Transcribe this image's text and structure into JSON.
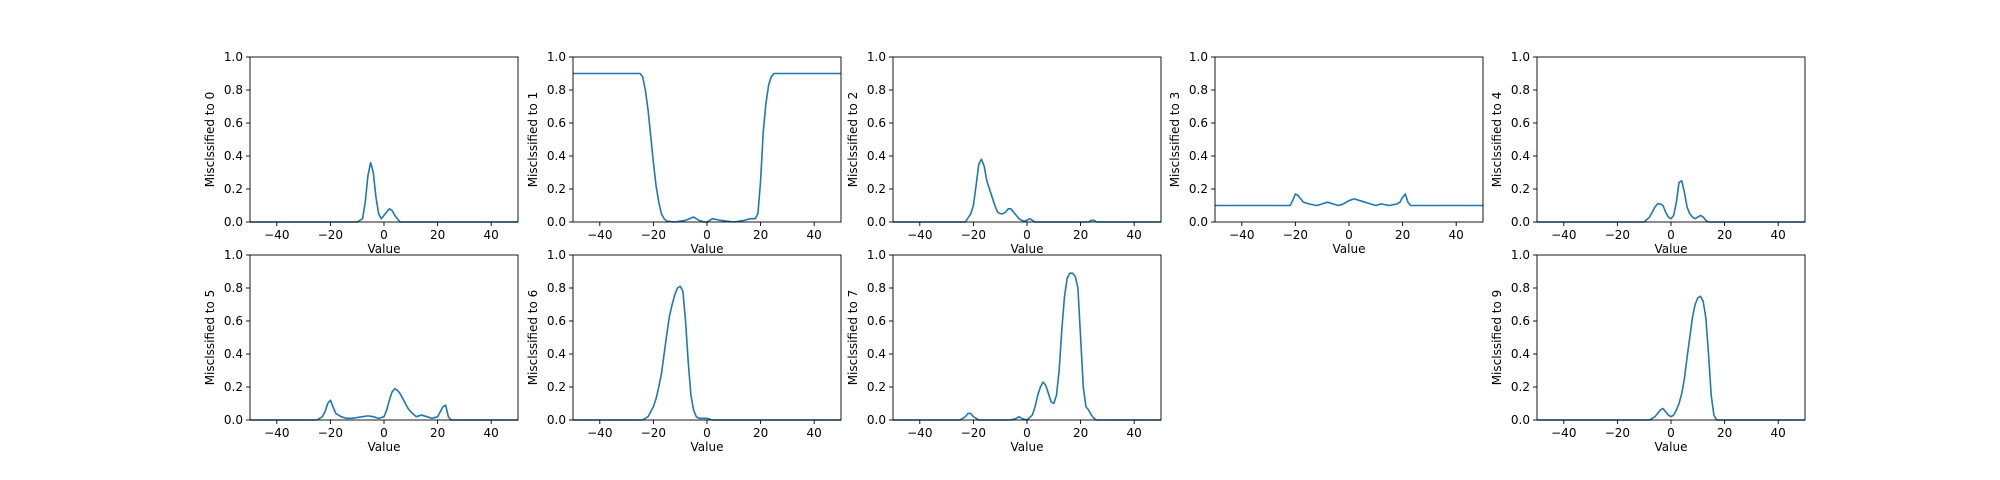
{
  "figure": {
    "background": "#ffffff",
    "line_color": "#1f77b4"
  },
  "chart_data": [
    {
      "type": "line",
      "xlabel": "Value",
      "ylabel": "Misclssified to 0",
      "xlim": [
        -50,
        50
      ],
      "ylim": [
        0,
        1
      ],
      "xticks": [
        -40,
        -20,
        0,
        20,
        40
      ],
      "yticks": [
        0.0,
        0.2,
        0.4,
        0.6,
        0.8,
        1.0
      ],
      "x": [
        -50,
        -40,
        -20,
        -10,
        -8,
        -7,
        -6,
        -5,
        -4,
        -3,
        -2,
        -1,
        0,
        1,
        2,
        3,
        4,
        5,
        6,
        7,
        8,
        10,
        20,
        40,
        50
      ],
      "y": [
        0,
        0,
        0,
        0,
        0.02,
        0.12,
        0.28,
        0.36,
        0.3,
        0.15,
        0.05,
        0.02,
        0.04,
        0.06,
        0.08,
        0.07,
        0.04,
        0.02,
        0,
        0,
        0,
        0,
        0,
        0,
        0
      ]
    },
    {
      "type": "line",
      "xlabel": "Value",
      "ylabel": "Misclssified to 1",
      "xlim": [
        -50,
        50
      ],
      "ylim": [
        0,
        1
      ],
      "xticks": [
        -40,
        -20,
        0,
        20,
        40
      ],
      "yticks": [
        0.0,
        0.2,
        0.4,
        0.6,
        0.8,
        1.0
      ],
      "x": [
        -50,
        -30,
        -25,
        -24,
        -23,
        -22,
        -21,
        -20,
        -19,
        -18,
        -17,
        -16,
        -15,
        -12,
        -8,
        -5,
        -3,
        -1,
        0,
        2,
        5,
        10,
        14,
        16,
        18,
        19,
        20,
        21,
        22,
        23,
        24,
        25,
        26,
        30,
        50
      ],
      "y": [
        0.9,
        0.9,
        0.9,
        0.88,
        0.8,
        0.68,
        0.52,
        0.36,
        0.22,
        0.12,
        0.05,
        0.02,
        0.005,
        0,
        0.01,
        0.03,
        0.01,
        0,
        0,
        0.02,
        0.01,
        0,
        0.01,
        0.02,
        0.02,
        0.05,
        0.25,
        0.55,
        0.72,
        0.83,
        0.88,
        0.9,
        0.9,
        0.9,
        0.9
      ]
    },
    {
      "type": "line",
      "xlabel": "Value",
      "ylabel": "Misclssified to 2",
      "xlim": [
        -50,
        50
      ],
      "ylim": [
        0,
        1
      ],
      "xticks": [
        -40,
        -20,
        0,
        20,
        40
      ],
      "yticks": [
        0.0,
        0.2,
        0.4,
        0.6,
        0.8,
        1.0
      ],
      "x": [
        -50,
        -30,
        -23,
        -21,
        -20,
        -19,
        -18,
        -17,
        -16,
        -15,
        -14,
        -13,
        -12,
        -11,
        -10,
        -9,
        -8,
        -7,
        -6,
        -5,
        -4,
        -3,
        -2,
        -1,
        0,
        1,
        2,
        3,
        5,
        20,
        23,
        24,
        25,
        26,
        30,
        50
      ],
      "y": [
        0,
        0,
        0,
        0.05,
        0.1,
        0.22,
        0.35,
        0.38,
        0.34,
        0.25,
        0.2,
        0.15,
        0.1,
        0.06,
        0.05,
        0.05,
        0.06,
        0.08,
        0.08,
        0.06,
        0.04,
        0.02,
        0.01,
        0.005,
        0.01,
        0.02,
        0.01,
        0,
        0,
        0,
        0,
        0.01,
        0.01,
        0,
        0,
        0
      ]
    },
    {
      "type": "line",
      "xlabel": "Value",
      "ylabel": "Misclssified to 3",
      "xlim": [
        -50,
        50
      ],
      "ylim": [
        0,
        1
      ],
      "xticks": [
        -40,
        -20,
        0,
        20,
        40
      ],
      "yticks": [
        0.0,
        0.2,
        0.4,
        0.6,
        0.8,
        1.0
      ],
      "x": [
        -50,
        -25,
        -22,
        -21,
        -20,
        -19,
        -18,
        -17,
        -15,
        -12,
        -10,
        -8,
        -6,
        -4,
        -2,
        0,
        2,
        4,
        6,
        8,
        10,
        12,
        15,
        18,
        19,
        20,
        21,
        22,
        23,
        25,
        50
      ],
      "y": [
        0.1,
        0.1,
        0.1,
        0.13,
        0.17,
        0.16,
        0.14,
        0.12,
        0.11,
        0.1,
        0.11,
        0.12,
        0.11,
        0.1,
        0.11,
        0.13,
        0.14,
        0.13,
        0.12,
        0.11,
        0.1,
        0.11,
        0.1,
        0.11,
        0.12,
        0.15,
        0.17,
        0.12,
        0.1,
        0.1,
        0.1
      ]
    },
    {
      "type": "line",
      "xlabel": "Value",
      "ylabel": "Misclssified to 4",
      "xlim": [
        -50,
        50
      ],
      "ylim": [
        0,
        1
      ],
      "xticks": [
        -40,
        -20,
        0,
        20,
        40
      ],
      "yticks": [
        0.0,
        0.2,
        0.4,
        0.6,
        0.8,
        1.0
      ],
      "x": [
        -50,
        -20,
        -10,
        -8,
        -7,
        -6,
        -5,
        -4,
        -3,
        -2,
        -1,
        0,
        1,
        2,
        3,
        4,
        5,
        6,
        7,
        8,
        9,
        10,
        11,
        12,
        13,
        14,
        16,
        20,
        50
      ],
      "y": [
        0,
        0,
        0,
        0.03,
        0.06,
        0.09,
        0.11,
        0.11,
        0.1,
        0.06,
        0.03,
        0.02,
        0.04,
        0.12,
        0.24,
        0.25,
        0.18,
        0.09,
        0.05,
        0.03,
        0.02,
        0.03,
        0.04,
        0.03,
        0.01,
        0,
        0,
        0,
        0
      ]
    },
    {
      "type": "line",
      "xlabel": "Value",
      "ylabel": "Misclssified to 5",
      "xlim": [
        -50,
        50
      ],
      "ylim": [
        0,
        1
      ],
      "xticks": [
        -40,
        -20,
        0,
        20,
        40
      ],
      "yticks": [
        0.0,
        0.2,
        0.4,
        0.6,
        0.8,
        1.0
      ],
      "x": [
        -50,
        -25,
        -23,
        -22,
        -21,
        -20,
        -19,
        -18,
        -16,
        -14,
        -12,
        -10,
        -8,
        -6,
        -4,
        -2,
        0,
        1,
        2,
        3,
        4,
        5,
        6,
        7,
        8,
        9,
        10,
        12,
        14,
        16,
        18,
        20,
        21,
        22,
        23,
        24,
        25,
        50
      ],
      "y": [
        0,
        0,
        0.02,
        0.05,
        0.1,
        0.12,
        0.08,
        0.04,
        0.02,
        0.01,
        0.01,
        0.015,
        0.02,
        0.025,
        0.02,
        0.01,
        0.02,
        0.06,
        0.12,
        0.17,
        0.19,
        0.18,
        0.16,
        0.13,
        0.1,
        0.07,
        0.05,
        0.02,
        0.03,
        0.02,
        0.01,
        0.02,
        0.05,
        0.08,
        0.09,
        0.02,
        0,
        0
      ]
    },
    {
      "type": "line",
      "xlabel": "Value",
      "ylabel": "Misclssified to 6",
      "xlim": [
        -50,
        50
      ],
      "ylim": [
        0,
        1
      ],
      "xticks": [
        -40,
        -20,
        0,
        20,
        40
      ],
      "yticks": [
        0.0,
        0.2,
        0.4,
        0.6,
        0.8,
        1.0
      ],
      "x": [
        -50,
        -30,
        -24,
        -22,
        -20,
        -19,
        -18,
        -17,
        -16,
        -15,
        -14,
        -13,
        -12,
        -11,
        -10,
        -9,
        -8,
        -7,
        -6,
        -5,
        -4,
        -3,
        -2,
        0,
        2,
        5,
        50
      ],
      "y": [
        0,
        0,
        0,
        0.02,
        0.08,
        0.13,
        0.2,
        0.28,
        0.4,
        0.52,
        0.63,
        0.7,
        0.76,
        0.8,
        0.81,
        0.78,
        0.6,
        0.35,
        0.15,
        0.06,
        0.02,
        0.01,
        0.01,
        0.01,
        0,
        0,
        0
      ]
    },
    {
      "type": "line",
      "xlabel": "Value",
      "ylabel": "Misclssified to 7",
      "xlim": [
        -50,
        50
      ],
      "ylim": [
        0,
        1
      ],
      "xticks": [
        -40,
        -20,
        0,
        20,
        40
      ],
      "yticks": [
        0.0,
        0.2,
        0.4,
        0.6,
        0.8,
        1.0
      ],
      "x": [
        -50,
        -30,
        -25,
        -23,
        -22,
        -21,
        -20,
        -19,
        -18,
        -10,
        -6,
        -4,
        -3,
        -2,
        0,
        2,
        3,
        4,
        5,
        6,
        7,
        8,
        9,
        10,
        11,
        12,
        13,
        14,
        15,
        16,
        17,
        18,
        19,
        20,
        21,
        22,
        23,
        24,
        25,
        26,
        30,
        50
      ],
      "y": [
        0,
        0,
        0,
        0.02,
        0.04,
        0.04,
        0.02,
        0.01,
        0,
        0,
        0,
        0.01,
        0.02,
        0.01,
        0,
        0.03,
        0.08,
        0.15,
        0.2,
        0.23,
        0.21,
        0.16,
        0.11,
        0.1,
        0.15,
        0.3,
        0.55,
        0.75,
        0.86,
        0.89,
        0.89,
        0.87,
        0.8,
        0.5,
        0.2,
        0.08,
        0.06,
        0.03,
        0.01,
        0,
        0,
        0
      ]
    },
    {
      "type": "line",
      "xlabel": "Value",
      "ylabel": "Misclssified to 9",
      "xlim": [
        -50,
        50
      ],
      "ylim": [
        0,
        1
      ],
      "xticks": [
        -40,
        -20,
        0,
        20,
        40
      ],
      "yticks": [
        0.0,
        0.2,
        0.4,
        0.6,
        0.8,
        1.0
      ],
      "x": [
        -50,
        -20,
        -8,
        -6,
        -5,
        -4,
        -3,
        -2,
        -1,
        0,
        1,
        2,
        3,
        4,
        5,
        6,
        7,
        8,
        9,
        10,
        11,
        12,
        13,
        14,
        15,
        16,
        17,
        20,
        50
      ],
      "y": [
        0,
        0,
        0,
        0.02,
        0.04,
        0.06,
        0.07,
        0.05,
        0.03,
        0.02,
        0.03,
        0.06,
        0.1,
        0.16,
        0.25,
        0.38,
        0.5,
        0.62,
        0.7,
        0.74,
        0.75,
        0.72,
        0.62,
        0.4,
        0.15,
        0.03,
        0,
        0,
        0
      ]
    }
  ]
}
